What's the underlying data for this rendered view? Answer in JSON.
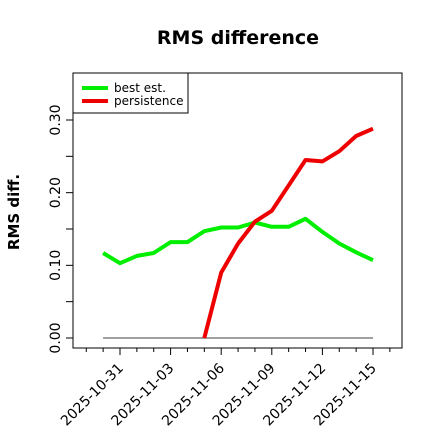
{
  "chart_data": {
    "type": "line",
    "title": "RMS difference",
    "ylabel": "RMS diff.",
    "xlabel": "",
    "ylim": [
      0,
      0.3
    ],
    "xlim": [
      "2025-10-29",
      "2025-11-16"
    ],
    "y_ticks": [
      0.0,
      0.1,
      0.2,
      0.3
    ],
    "y_tick_labels": [
      "0.00",
      "0.10",
      "0.20",
      "0.30"
    ],
    "x_tick_labels": [
      "2025-10-31",
      "2025-11-03",
      "2025-11-06",
      "2025-11-09",
      "2025-11-12",
      "2025-11-15"
    ],
    "legend_position": "top-left",
    "grid": false,
    "series": [
      {
        "name": "best est.",
        "color": "#00ee00",
        "x": [
          "2025-10-30",
          "2025-10-31",
          "2025-11-01",
          "2025-11-02",
          "2025-11-03",
          "2025-11-04",
          "2025-11-05",
          "2025-11-06",
          "2025-11-07",
          "2025-11-08",
          "2025-11-09",
          "2025-11-10",
          "2025-11-11",
          "2025-11-12",
          "2025-11-13",
          "2025-11-14",
          "2025-11-15"
        ],
        "values": [
          0.117,
          0.103,
          0.113,
          0.117,
          0.132,
          0.132,
          0.147,
          0.152,
          0.152,
          0.159,
          0.153,
          0.153,
          0.164,
          0.146,
          0.13,
          0.118,
          0.107
        ]
      },
      {
        "name": "persistence",
        "color": "#ee0000",
        "x": [
          "2025-11-05",
          "2025-11-06",
          "2025-11-07",
          "2025-11-08",
          "2025-11-09",
          "2025-11-10",
          "2025-11-11",
          "2025-11-12",
          "2025-11-13",
          "2025-11-14",
          "2025-11-15"
        ],
        "values": [
          0.0,
          0.09,
          0.13,
          0.16,
          0.175,
          0.21,
          0.245,
          0.243,
          0.257,
          0.278,
          0.288
        ]
      },
      {
        "name": "",
        "color": "#808080",
        "x": [
          "2025-10-30",
          "2025-11-15"
        ],
        "values": [
          0.0,
          0.0
        ]
      }
    ]
  }
}
